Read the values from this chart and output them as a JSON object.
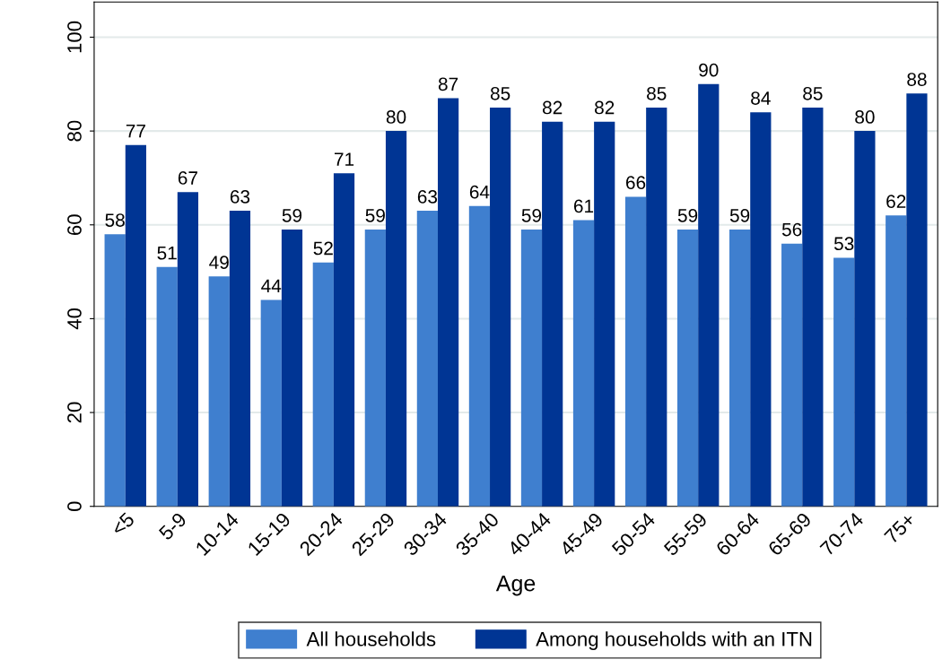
{
  "chart_data": {
    "type": "bar",
    "xlabel": "Age",
    "categories": [
      "<5",
      "5-9",
      "10-14",
      "15-19",
      "20-24",
      "25-29",
      "30-34",
      "35-40",
      "40-44",
      "45-49",
      "50-54",
      "55-59",
      "60-64",
      "65-69",
      "70-74",
      "75+"
    ],
    "series": [
      {
        "name": "All households",
        "color": "#3f7fcf",
        "values": [
          58,
          51,
          49,
          44,
          52,
          59,
          63,
          64,
          59,
          61,
          66,
          59,
          59,
          56,
          53,
          62
        ]
      },
      {
        "name": "Among households with an ITN",
        "color": "#003594",
        "values": [
          77,
          67,
          63,
          59,
          71,
          80,
          87,
          85,
          82,
          82,
          85,
          90,
          84,
          85,
          80,
          88
        ]
      }
    ],
    "ylim": [
      0,
      107.5
    ],
    "yticks": [
      0,
      20,
      40,
      60,
      80,
      100
    ],
    "grid": "y",
    "legend": "bottom",
    "data_labels": true
  }
}
